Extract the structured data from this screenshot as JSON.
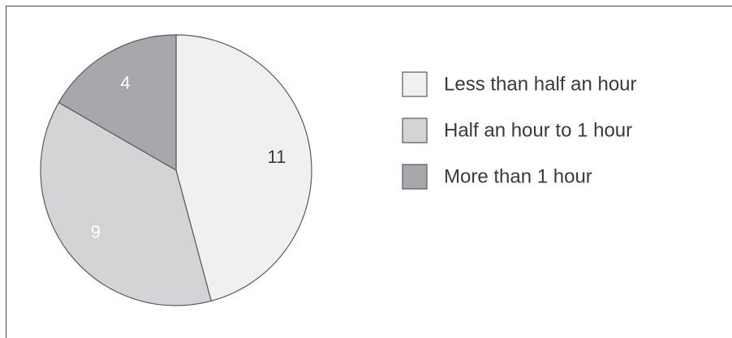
{
  "chart_data": {
    "type": "pie",
    "title": "",
    "categories": [
      "Less than half an hour",
      "Half an hour to 1 hour",
      "More than 1 hour"
    ],
    "values": [
      11,
      9,
      4
    ],
    "colors": [
      "#f0f0f0",
      "#d4d4d6",
      "#a8a8ac"
    ],
    "label_colors": [
      "#3a3a3a",
      "#ffffff",
      "#ffffff"
    ],
    "slice_border_color": "#5a5a5a",
    "start_angle": "12 o'clock",
    "direction": "clockwise",
    "legend": {
      "placement": "right"
    }
  }
}
